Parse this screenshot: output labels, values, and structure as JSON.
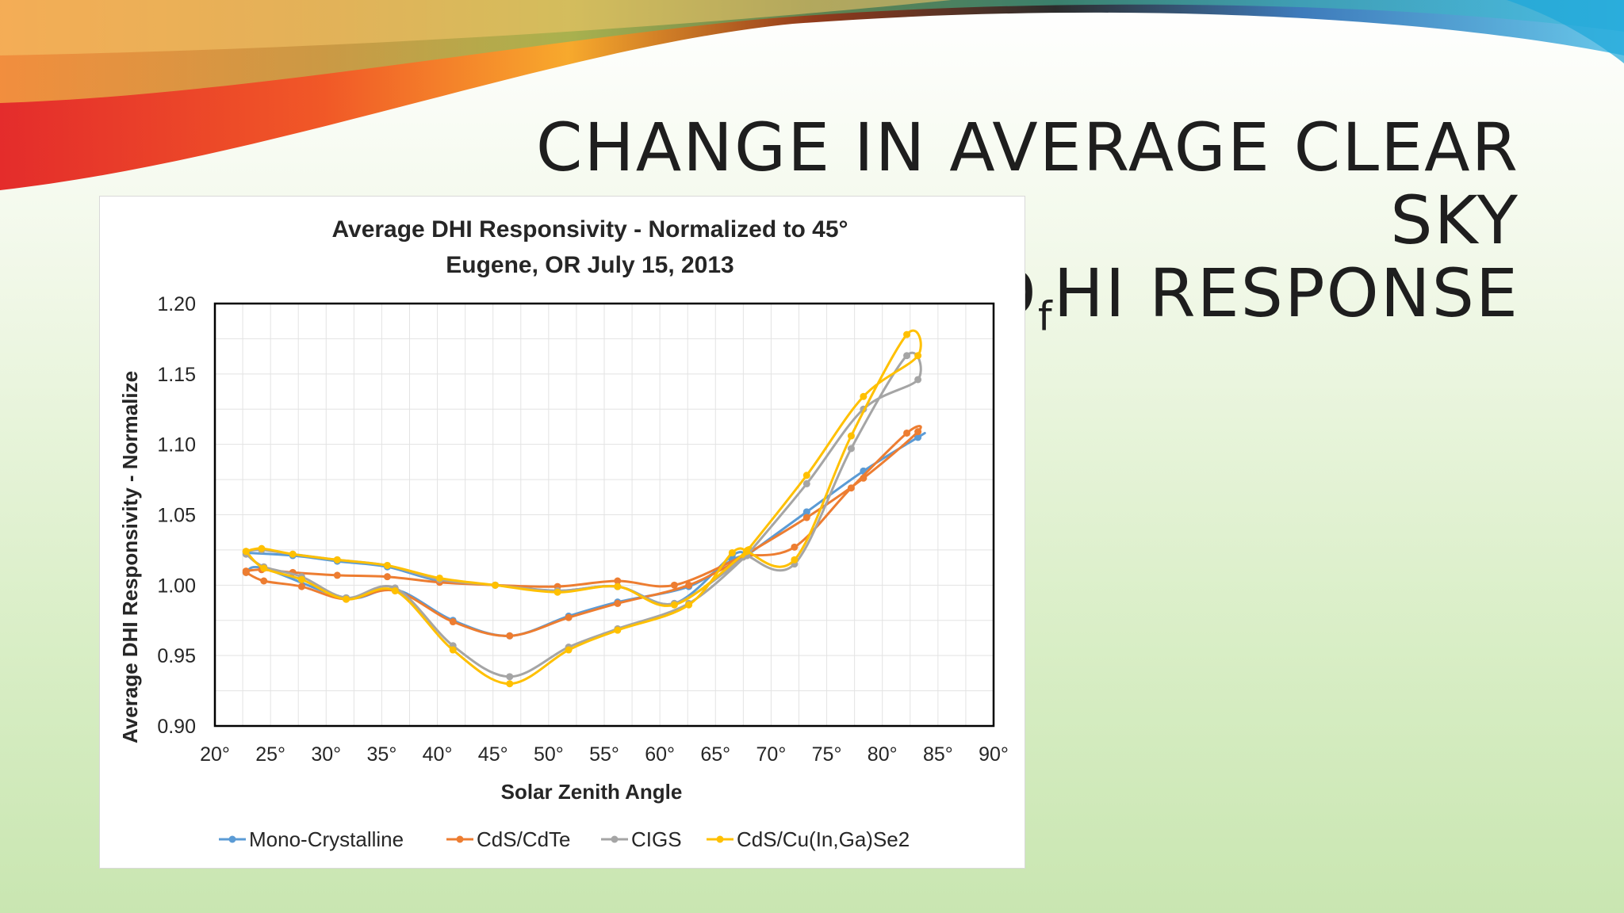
{
  "slide": {
    "title_line1": "CHANGE IN AVERAGE CLEAR SKY",
    "title_line2_main": "D",
    "title_line2_sub": "f",
    "title_line2_rest": "HI RESPONSE"
  },
  "chart_data": {
    "type": "line",
    "title": "Average DHI Responsivity - Normalized to 45°",
    "subtitle": "Eugene, OR  July 15, 2013",
    "xlabel": "Solar Zenith Angle",
    "ylabel": "Average DHI Responsivity - Normalize",
    "xlim": [
      20,
      90
    ],
    "ylim": [
      0.9,
      1.2
    ],
    "xticks": [
      20,
      25,
      30,
      35,
      40,
      45,
      50,
      55,
      60,
      65,
      70,
      75,
      80,
      85,
      90
    ],
    "xtick_labels": [
      "20°",
      "25°",
      "30°",
      "35°",
      "40°",
      "45°",
      "50°",
      "55°",
      "60°",
      "65°",
      "70°",
      "75°",
      "80°",
      "85°",
      "90°"
    ],
    "yticks": [
      0.9,
      0.95,
      1.0,
      1.05,
      1.1,
      1.15,
      1.2
    ],
    "ytick_labels": [
      "0.90",
      "0.95",
      "1.00",
      "1.05",
      "1.10",
      "1.15",
      "1.20"
    ],
    "grid": true,
    "legend_position": "bottom",
    "series": [
      {
        "name": "Mono-Crystalline",
        "color": "#5b9bd5",
        "points": [
          [
            22.8,
            1.023
          ],
          [
            27,
            1.021
          ],
          [
            31,
            1.017
          ],
          [
            35.5,
            1.013
          ],
          [
            40.2,
            1.003
          ],
          [
            45.2,
            1.0
          ],
          [
            50.8,
            0.996
          ],
          [
            56.2,
            0.999
          ],
          [
            61.3,
            0.987
          ],
          [
            66.5,
            1.021
          ],
          [
            67.8,
            1.021
          ],
          [
            67.8,
            1.021
          ],
          [
            73.2,
            1.052
          ],
          [
            78.3,
            1.081
          ],
          [
            83.2,
            1.105
          ],
          [
            83.2,
            1.105
          ],
          [
            78.3,
            1.081
          ],
          [
            73.2,
            1.052
          ],
          [
            67.8,
            1.021
          ],
          [
            67.8,
            1.021
          ],
          [
            66.5,
            1.018
          ],
          [
            62.6,
            0.999
          ],
          [
            56.2,
            0.988
          ],
          [
            51.8,
            0.978
          ],
          [
            46.5,
            0.964
          ],
          [
            41.4,
            0.975
          ],
          [
            36.2,
            0.997
          ],
          [
            31.8,
            0.991
          ],
          [
            24.4,
            1.012
          ],
          [
            22.8,
            1.009
          ]
        ]
      },
      {
        "name": "CdS/CdTe",
        "color": "#ed7d31",
        "points": [
          [
            22.8,
            1.009
          ],
          [
            24.4,
            1.003
          ],
          [
            27.8,
            0.999
          ],
          [
            31.8,
            0.99
          ],
          [
            36.2,
            0.996
          ],
          [
            41.4,
            0.974
          ],
          [
            46.5,
            0.964
          ],
          [
            51.8,
            0.977
          ],
          [
            56.2,
            0.987
          ],
          [
            62.6,
            1.0
          ],
          [
            67.8,
            1.021
          ],
          [
            67.8,
            1.021
          ],
          [
            72.1,
            1.027
          ],
          [
            77.2,
            1.069
          ],
          [
            82.2,
            1.108
          ],
          [
            83.2,
            1.109
          ],
          [
            78.3,
            1.076
          ],
          [
            73.2,
            1.048
          ],
          [
            67.8,
            1.022
          ],
          [
            67.8,
            1.022
          ],
          [
            61.3,
            1.0
          ],
          [
            56.2,
            1.003
          ],
          [
            50.8,
            0.999
          ],
          [
            45.2,
            1.0
          ],
          [
            40.2,
            1.002
          ],
          [
            35.5,
            1.006
          ],
          [
            31,
            1.007
          ],
          [
            27,
            1.009
          ],
          [
            24.2,
            1.011
          ],
          [
            22.8,
            1.01
          ]
        ]
      },
      {
        "name": "CIGS",
        "color": "#a5a5a5",
        "points": [
          [
            22.8,
            1.024
          ],
          [
            24.2,
            1.025
          ],
          [
            27,
            1.022
          ],
          [
            31,
            1.018
          ],
          [
            35.5,
            1.014
          ],
          [
            40.2,
            1.004
          ],
          [
            45.2,
            1.0
          ],
          [
            50.8,
            0.996
          ],
          [
            56.2,
            0.999
          ],
          [
            61.3,
            0.987
          ],
          [
            67.8,
            1.021
          ],
          [
            67.8,
            1.021
          ],
          [
            72.1,
            1.015
          ],
          [
            77.2,
            1.097
          ],
          [
            82.2,
            1.163
          ],
          [
            83.2,
            1.146
          ],
          [
            78.3,
            1.125
          ],
          [
            73.2,
            1.072
          ],
          [
            67.8,
            1.021
          ],
          [
            67.8,
            1.021
          ],
          [
            62.6,
            0.987
          ],
          [
            56.2,
            0.969
          ],
          [
            51.8,
            0.956
          ],
          [
            46.5,
            0.935
          ],
          [
            41.4,
            0.957
          ],
          [
            36.2,
            0.998
          ],
          [
            31.8,
            0.991
          ],
          [
            27.8,
            1.006
          ],
          [
            24.4,
            1.013
          ],
          [
            22.8,
            1.022
          ]
        ]
      },
      {
        "name": "CdS/Cu(In,Ga)Se2",
        "color": "#ffc000",
        "points": [
          [
            22.8,
            1.024
          ],
          [
            24.2,
            1.026
          ],
          [
            27,
            1.022
          ],
          [
            31,
            1.018
          ],
          [
            35.5,
            1.014
          ],
          [
            40.2,
            1.005
          ],
          [
            45.2,
            1.0
          ],
          [
            50.8,
            0.995
          ],
          [
            56.2,
            0.999
          ],
          [
            61.3,
            0.986
          ],
          [
            67.8,
            1.024
          ],
          [
            67.8,
            1.024
          ],
          [
            72.1,
            1.018
          ],
          [
            77.2,
            1.106
          ],
          [
            82.2,
            1.178
          ],
          [
            83.2,
            1.163
          ],
          [
            78.3,
            1.134
          ],
          [
            73.2,
            1.078
          ],
          [
            67.8,
            1.024
          ],
          [
            67.8,
            1.024
          ],
          [
            66.5,
            1.023
          ],
          [
            62.6,
            0.986
          ],
          [
            56.2,
            0.968
          ],
          [
            51.8,
            0.954
          ],
          [
            46.5,
            0.93
          ],
          [
            41.4,
            0.954
          ],
          [
            36.2,
            0.996
          ],
          [
            31.8,
            0.99
          ],
          [
            27.8,
            1.004
          ],
          [
            24.4,
            1.012
          ],
          [
            22.8,
            1.024
          ]
        ]
      }
    ]
  }
}
